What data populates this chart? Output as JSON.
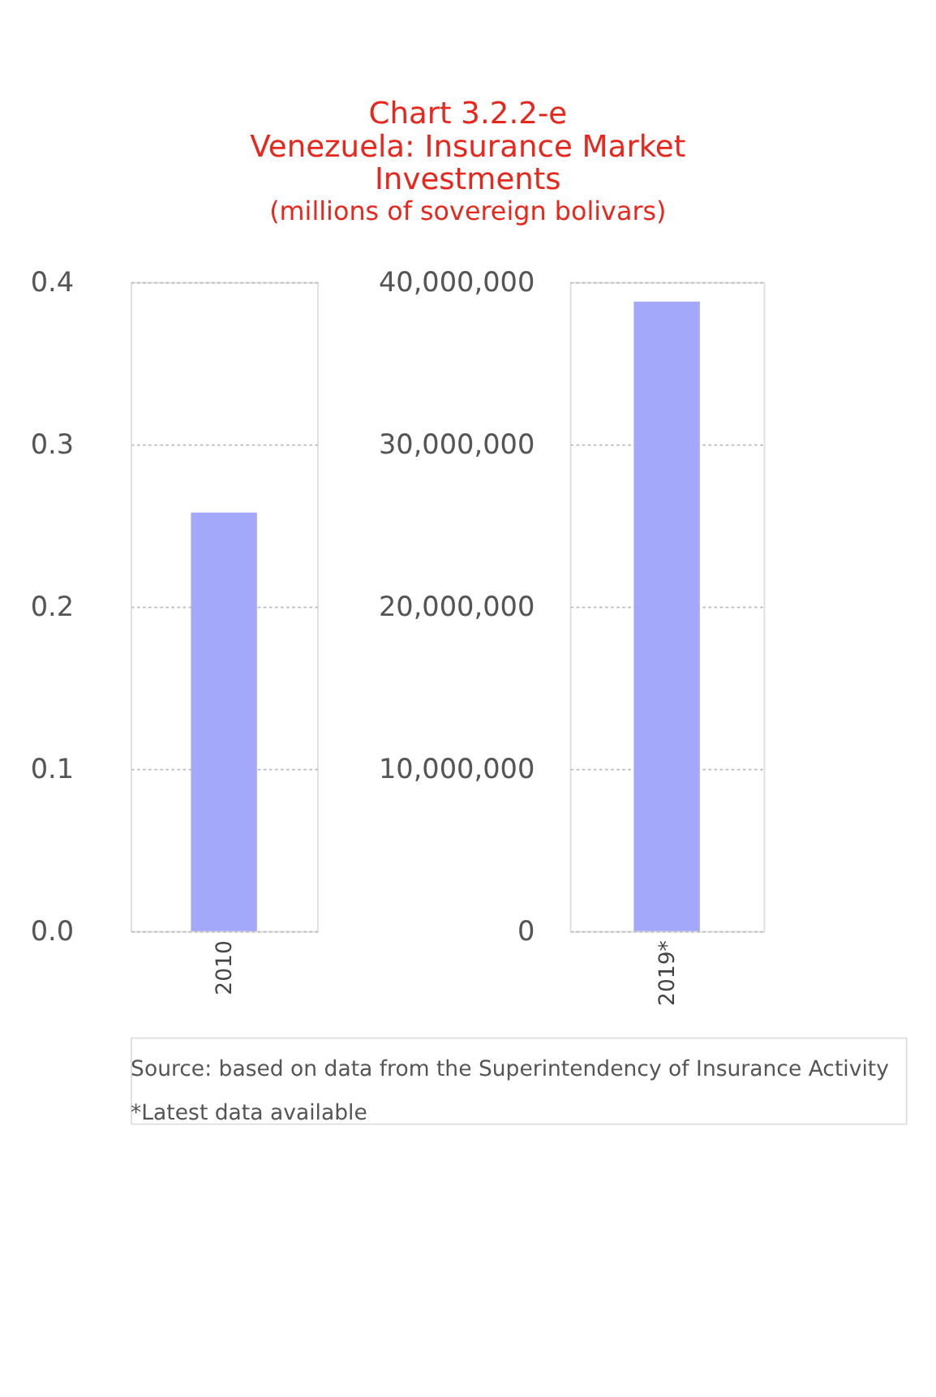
{
  "chart_data": [
    {
      "type": "bar",
      "title": "Chart 3.2.2-e\nVenezuela:  Insurance Market\nInvestments",
      "subtitle": "(millions of sovereign bolivars)",
      "categories": [
        "2010"
      ],
      "values": [
        0.258
      ],
      "color": "#a3a8fa",
      "ylim": [
        0,
        0.4
      ],
      "yticks": [
        {
          "value": 0,
          "label": "0.0"
        },
        0.1,
        0.2,
        0.3,
        0.4
      ],
      "grid": "y",
      "annotations": [
        "Source: based on data from the Superintendency of Insurance Activity",
        "*Latest data available"
      ]
    },
    {
      "type": "bar",
      "categories": [
        "2019*"
      ],
      "values": [
        38800000
      ],
      "color": "#a3a8fa",
      "ylim": [
        0,
        40000000
      ],
      "yticks": [
        0,
        {
          "value": 10000000,
          "label": "10,000,000"
        },
        {
          "value": 20000000,
          "label": "20,000,000"
        },
        {
          "value": 30000000,
          "label": "30,000,000"
        },
        {
          "value": 40000000,
          "label": "40,000,000"
        }
      ],
      "grid": "y"
    }
  ]
}
